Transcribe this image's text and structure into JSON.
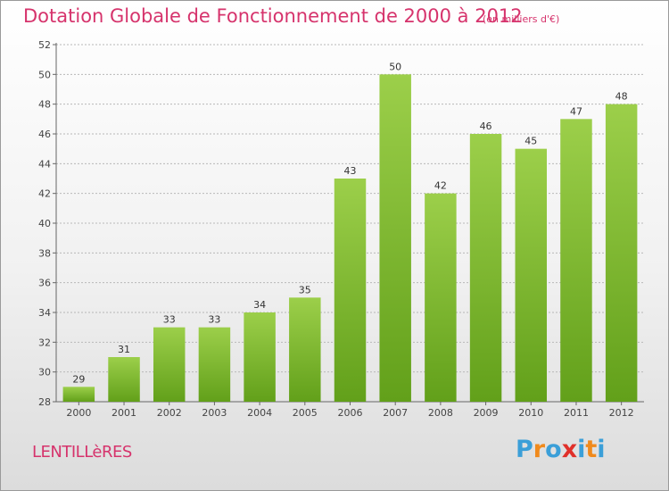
{
  "header": {
    "title": "Dotation Globale de Fonctionnement de 2000 à 2012",
    "subtitle": "(en milliers d'€)"
  },
  "commune": "LENTILLèRES",
  "logo": {
    "letters": [
      "P",
      "r",
      "o",
      "x",
      "i",
      "t",
      "i"
    ],
    "colors": [
      "#3b9fd8",
      "#f08a1c",
      "#3b9fd8",
      "#e0302a",
      "#3b9fd8",
      "#f08a1c",
      "#3b9fd8"
    ]
  },
  "chart_data": {
    "type": "bar",
    "categories": [
      "2000",
      "2001",
      "2002",
      "2003",
      "2004",
      "2005",
      "2006",
      "2007",
      "2008",
      "2009",
      "2010",
      "2011",
      "2012"
    ],
    "values": [
      29,
      31,
      33,
      33,
      34,
      35,
      43,
      50,
      42,
      46,
      45,
      47,
      48
    ],
    "ylim": [
      28,
      52
    ],
    "yticks": [
      28,
      30,
      32,
      34,
      36,
      38,
      40,
      42,
      44,
      46,
      48,
      50,
      52
    ],
    "grid": true,
    "bar_color_top": "#9ccf4a",
    "bar_color_bottom": "#62a01a",
    "grid_color": "#b8b8b8"
  }
}
